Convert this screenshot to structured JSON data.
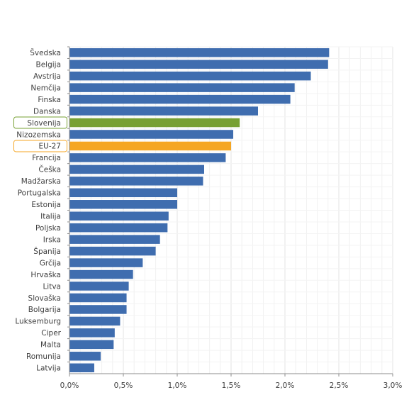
{
  "chart_data": {
    "type": "bar",
    "orientation": "horizontal",
    "categories": [
      "Švedska",
      "Belgija",
      "Avstrija",
      "Nemčija",
      "Finska",
      "Danska",
      "Slovenija",
      "Nizozemska",
      "EU-27",
      "Francija",
      "Češka",
      "Madžarska",
      "Portugalska",
      "Estonija",
      "Italija",
      "Poljska",
      "Irska",
      "Španija",
      "Grčija",
      "Hrvaška",
      "Litva",
      "Slovaška",
      "Bolgarija",
      "Luksemburg",
      "Ciper",
      "Malta",
      "Romunija",
      "Latvija"
    ],
    "values": [
      2.41,
      2.4,
      2.24,
      2.09,
      2.05,
      1.75,
      1.58,
      1.52,
      1.5,
      1.45,
      1.25,
      1.24,
      1.0,
      1.0,
      0.92,
      0.91,
      0.84,
      0.8,
      0.68,
      0.59,
      0.55,
      0.53,
      0.53,
      0.47,
      0.42,
      0.41,
      0.29,
      0.23
    ],
    "highlights": {
      "Slovenija": "#77a033",
      "EU-27": "#f5a623"
    },
    "bar_color": "#3f6daf",
    "ticks": [
      "0,0%",
      "0,5%",
      "1,0%",
      "1,5%",
      "2,0%",
      "2,5%",
      "3,0%"
    ],
    "xlim": [
      0,
      3
    ],
    "grid": true,
    "title": "",
    "xlabel": "",
    "ylabel": ""
  }
}
